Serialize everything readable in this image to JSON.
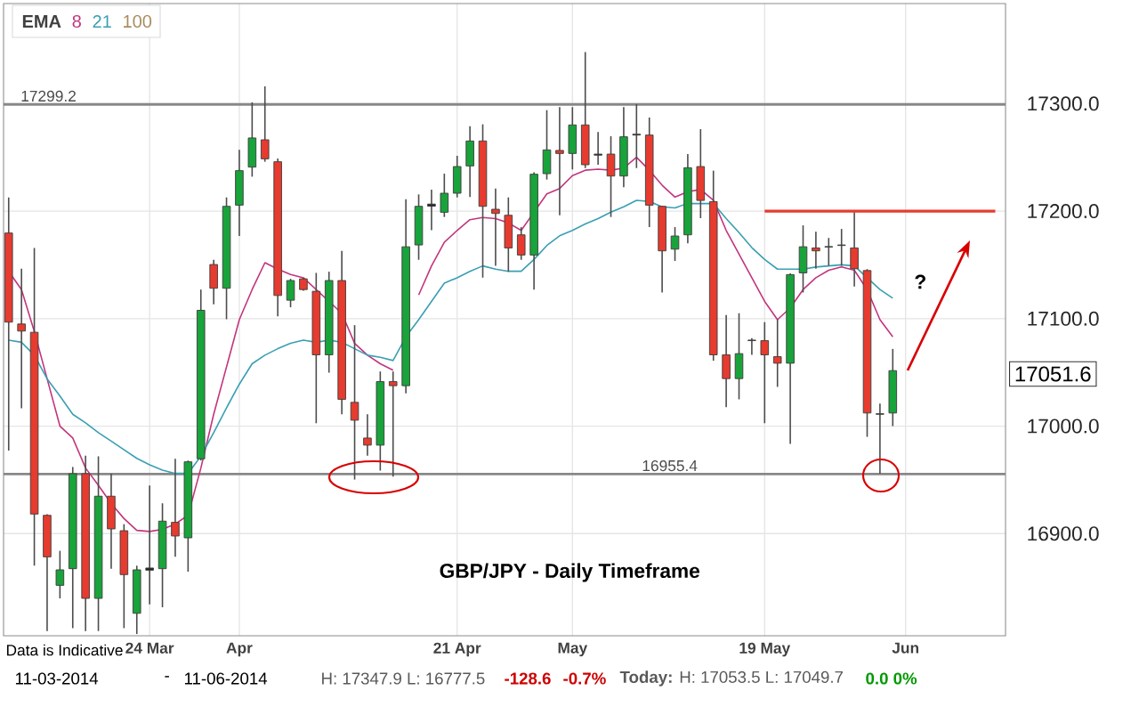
{
  "chart_data": {
    "type": "candlestick",
    "title": "GBP/JPY - Daily Timeframe",
    "legend_title": "EMA",
    "legend": "top left",
    "grid": true,
    "categories": [
      null,
      null,
      null,
      null,
      null,
      null,
      null,
      null,
      null,
      null,
      null,
      "24 Mar",
      null,
      null,
      null,
      null,
      null,
      null,
      "Apr",
      null,
      null,
      null,
      null,
      null,
      null,
      null,
      null,
      null,
      null,
      null,
      null,
      null,
      null,
      null,
      null,
      "21 Apr",
      null,
      null,
      null,
      null,
      null,
      null,
      null,
      null,
      "May",
      null,
      null,
      null,
      null,
      null,
      null,
      null,
      null,
      null,
      null,
      null,
      null,
      null,
      null,
      "19 May",
      null,
      null,
      null,
      null,
      null,
      null,
      null,
      null,
      null,
      null,
      "Jun",
      null,
      null,
      null,
      null,
      null,
      null,
      null
    ],
    "ohlc": [
      [
        17179.6,
        17212.7,
        16977.3,
        17096.7
      ],
      [
        17095.0,
        17146.4,
        17016.6,
        17088.4
      ],
      [
        17087.3,
        17165.7,
        16870.2,
        16918.2
      ],
      [
        16917.0,
        16918.0,
        16809.4,
        16878.4
      ],
      [
        16851.9,
        16884.0,
        16839.8,
        16866.3
      ],
      [
        16867.4,
        16962.0,
        16812.1,
        16955.8
      ],
      [
        16955.8,
        16972.4,
        16809.4,
        16839.8
      ],
      [
        16839.8,
        16971.9,
        16809.4,
        16934.8
      ],
      [
        16934.8,
        16955.8,
        16867.4,
        16904.4
      ],
      [
        16902.7,
        16908.8,
        16812.1,
        16861.9
      ],
      [
        16825.9,
        16870.2,
        16806.6,
        16866.3
      ],
      [
        16866.0,
        16944.7,
        16834.2,
        16868.0
      ],
      [
        16867.4,
        16928.2,
        16831.5,
        16911.6
      ],
      [
        16910.5,
        16969.6,
        16878.4,
        16897.8
      ],
      [
        16896.1,
        16968.0,
        16864.6,
        16966.8
      ],
      [
        16969.6,
        17127.0,
        16968.0,
        17107.7
      ],
      [
        17150.3,
        17154.7,
        17113.3,
        17128.2
      ],
      [
        17128.2,
        17212.7,
        17099.4,
        17204.4
      ],
      [
        17205.5,
        17256.9,
        17176.8,
        17237.6
      ],
      [
        17240.9,
        17301.1,
        17232.0,
        17268.0
      ],
      [
        17266.3,
        17316.0,
        17245.9,
        17248.6
      ],
      [
        17245.9,
        17249.0,
        17102.2,
        17121.5
      ],
      [
        17117.1,
        17137.0,
        17110.5,
        17135.4
      ],
      [
        17137.0,
        17138.0,
        17126.0,
        17127.0
      ],
      [
        17125.4,
        17142.5,
        17002.7,
        17066.3
      ],
      [
        17066.3,
        17143.6,
        17049.7,
        17135.4
      ],
      [
        17135.4,
        17163.0,
        17011.0,
        17024.9
      ],
      [
        17022.1,
        17093.9,
        16950.3,
        17005.5
      ],
      [
        16988.9,
        17011.0,
        16972.4,
        16982.3
      ],
      [
        16982.3,
        17050.8,
        16958.6,
        17041.4
      ],
      [
        17041.4,
        17050.8,
        16953.0,
        17037.6
      ],
      [
        17037.6,
        17211.0,
        17030.4,
        17166.8
      ],
      [
        17168.5,
        17215.5,
        17154.7,
        17204.4
      ],
      [
        17204.5,
        17219.9,
        17182.3,
        17206.5
      ],
      [
        17198.9,
        17234.8,
        17194.5,
        17216.6
      ],
      [
        17216.6,
        17251.4,
        17212.7,
        17241.4
      ],
      [
        17242.0,
        17279.0,
        17213.0,
        17265.2
      ],
      [
        17265.2,
        17280.7,
        17138.1,
        17204.4
      ],
      [
        17201.7,
        17221.0,
        17149.2,
        17197.8
      ],
      [
        17196.1,
        17212.7,
        17143.6,
        17165.7
      ],
      [
        17177.9,
        17185.1,
        17154.7,
        17159.1
      ],
      [
        17159.1,
        17236.0,
        17127.0,
        17234.3
      ],
      [
        17234.8,
        17293.9,
        17229.3,
        17256.9
      ],
      [
        17256.4,
        17296.7,
        17196.1,
        17253.6
      ],
      [
        17253.6,
        17296.7,
        17238.7,
        17280.1
      ],
      [
        17280.1,
        17347.9,
        17240.0,
        17243.1
      ],
      [
        17252.0,
        17273.5,
        17243.1,
        17253.0
      ],
      [
        17253.0,
        17269.6,
        17194.5,
        17232.6
      ],
      [
        17232.6,
        17296.7,
        17222.1,
        17269.1
      ],
      [
        17270.7,
        17299.4,
        17240.0,
        17271.5
      ],
      [
        17270.7,
        17287.0,
        17185.1,
        17205.5
      ],
      [
        17204.4,
        17205.0,
        17124.3,
        17163.0
      ],
      [
        17164.6,
        17185.1,
        17153.6,
        17176.8
      ],
      [
        17177.9,
        17253.0,
        17170.0,
        17240.3
      ],
      [
        17241.4,
        17276.2,
        17193.4,
        17209.9
      ],
      [
        17208.8,
        17237.6,
        17060.8,
        17066.3
      ],
      [
        17066.3,
        17103.3,
        17017.7,
        17044.2
      ],
      [
        17044.2,
        17105.0,
        17024.9,
        17067.4
      ],
      [
        17079.5,
        17081.8,
        17066.3,
        17080.0
      ],
      [
        17079.5,
        17096.7,
        17002.7,
        17066.3
      ],
      [
        17064.6,
        17099.4,
        17036.5,
        17058.5
      ],
      [
        17058.5,
        17142.0,
        16983.4,
        17140.9
      ],
      [
        17142.5,
        17186.7,
        17124.3,
        17166.8
      ],
      [
        17165.7,
        17180.7,
        17146.4,
        17163.0
      ],
      [
        17166.5,
        17175.0,
        17149.2,
        17167.0
      ],
      [
        17168.0,
        17183.4,
        17149.2,
        17168.5
      ],
      [
        17165.7,
        17198.9,
        17129.8,
        17146.4
      ],
      [
        17144.7,
        17146.0,
        16990.0,
        17012.2
      ],
      [
        17011.0,
        17021.0,
        16955.8,
        17011.5
      ],
      [
        17012.2,
        17071.8,
        17000.0,
        17051.6
      ],
      null,
      null,
      null,
      null,
      null,
      null,
      null,
      null
    ],
    "colors": [
      "#e63b2e",
      "#e63b2e",
      "#e63b2e",
      "#e63b2e",
      "#19a33b",
      "#19a33b",
      "#e63b2e",
      "#19a33b",
      "#e63b2e",
      "#e63b2e",
      "#19a33b",
      "#222222",
      "#19a33b",
      "#e63b2e",
      "#19a33b",
      "#19a33b",
      "#e63b2e",
      "#19a33b",
      "#19a33b",
      "#19a33b",
      "#e63b2e",
      "#e63b2e",
      "#19a33b",
      "#e63b2e",
      "#e63b2e",
      "#19a33b",
      "#e63b2e",
      "#e63b2e",
      "#e63b2e",
      "#19a33b",
      "#e63b2e",
      "#19a33b",
      "#19a33b",
      "#222222",
      "#19a33b",
      "#19a33b",
      "#19a33b",
      "#e63b2e",
      "#e63b2e",
      "#e63b2e",
      "#e63b2e",
      "#19a33b",
      "#19a33b",
      "#e63b2e",
      "#19a33b",
      "#e63b2e",
      "#222222",
      "#e63b2e",
      "#19a33b",
      "#222222",
      "#e63b2e",
      "#e63b2e",
      "#19a33b",
      "#19a33b",
      "#e63b2e",
      "#e63b2e",
      "#e63b2e",
      "#19a33b",
      "#222222",
      "#e63b2e",
      "#e63b2e",
      "#19a33b",
      "#19a33b",
      "#e63b2e",
      "#222222",
      "#222222",
      "#e63b2e",
      "#e63b2e",
      "#222222",
      "#19a33b",
      null,
      null,
      null,
      null,
      null,
      null,
      null,
      null
    ],
    "series": [
      {
        "type": "line",
        "name": "8",
        "color": "#c2357e",
        "values": [
          17144,
          17127,
          17088,
          17044,
          17000,
          16989,
          16961,
          16945,
          16928,
          16914,
          16903,
          16902,
          16904,
          16909,
          16917,
          16961,
          17011,
          17055,
          17099,
          17127,
          17152,
          17146,
          17141,
          17138,
          17127,
          17116,
          17105,
          17077,
          17066,
          17058,
          17052,
          null,
          17122,
          17149,
          17171,
          17182,
          17192,
          17194,
          17193,
          17189,
          17182,
          17199,
          17216,
          17221,
          17233,
          17238,
          17239,
          17238,
          17240,
          17250,
          17238,
          17224,
          17213,
          17218,
          17220,
          17210,
          17182,
          17160,
          17138,
          17116,
          17099,
          17110,
          17127,
          17138,
          17145,
          17148,
          17145,
          17127,
          17099,
          17083,
          null,
          null,
          null,
          null,
          null,
          null,
          null,
          null
        ]
      },
      {
        "type": "line",
        "name": "21",
        "color": "#3a9fb3",
        "values": [
          17080,
          17078,
          17066,
          17044,
          17028,
          17011,
          17003,
          16994,
          16986,
          16978,
          16970,
          16964,
          16959,
          16956,
          16956,
          16972,
          16994,
          17017,
          17039,
          17058,
          17066,
          17072,
          17077,
          17080,
          17078,
          17080,
          17078,
          17072,
          17066,
          17064,
          17061,
          17083,
          17099,
          17116,
          17133,
          17138,
          17144,
          17149,
          17146,
          17144,
          17144,
          17155,
          17168,
          17177,
          17182,
          17188,
          17193,
          17199,
          17204,
          17210,
          17209,
          17204,
          17203,
          17207,
          17207,
          17207,
          17193,
          17180,
          17166,
          17155,
          17146,
          17146,
          17146,
          17148,
          17149,
          17150,
          17149,
          17138,
          17127,
          17119,
          null,
          null,
          null,
          null,
          null,
          null,
          null,
          null
        ]
      },
      {
        "type": "line",
        "name": "100",
        "color": "#a88c5c",
        "values": [
          null,
          null,
          null,
          null,
          null,
          null,
          null,
          null,
          null,
          null,
          null,
          null,
          null,
          null,
          null,
          null,
          null,
          null,
          null,
          null,
          null,
          null,
          null,
          null,
          null,
          null,
          null,
          null,
          null,
          null,
          null,
          null,
          null,
          null,
          null,
          null,
          null,
          null,
          null,
          null,
          null,
          null,
          null,
          null,
          null,
          null,
          null,
          null,
          null,
          null,
          null,
          null,
          null,
          null,
          null,
          null,
          null,
          null,
          null,
          null,
          null,
          null,
          null,
          null,
          null,
          null,
          null,
          null,
          null,
          null,
          null,
          null,
          null,
          null,
          null,
          null,
          null,
          null
        ]
      },
      {
        "type": "line",
        "color": "#e63b2e",
        "values": [
          null,
          null,
          null,
          null,
          null,
          null,
          null,
          null,
          null,
          null,
          null,
          null,
          null,
          null,
          null,
          null,
          null,
          null,
          null,
          null,
          null,
          null,
          null,
          null,
          null,
          null,
          null,
          null,
          null,
          null,
          null,
          null,
          null,
          null,
          null,
          null,
          null,
          null,
          null,
          null,
          null,
          null,
          null,
          null,
          null,
          null,
          null,
          null,
          null,
          null,
          null,
          null,
          null,
          null,
          null,
          null,
          null,
          null,
          null,
          17200,
          17200,
          17200,
          17200,
          17200,
          17200,
          17200,
          17200,
          17200,
          17200,
          17200,
          17200,
          17200,
          17200,
          17200,
          17200,
          17200,
          17200,
          17200
        ]
      }
    ],
    "ylim": [
      16805,
      17393
    ],
    "yticks": [
      {
        "value": 16900,
        "label": "16900.0"
      },
      {
        "value": 17000,
        "label": "17000.0"
      },
      {
        "value": 17100,
        "label": "17100.0"
      },
      {
        "value": 17200,
        "label": "17200.0"
      },
      {
        "value": 17300,
        "label": "17300.0"
      }
    ],
    "ref_lines": [
      {
        "axis": "y",
        "value": 17299.2,
        "label": "17299.2",
        "color": "#888888"
      },
      {
        "axis": "y",
        "value": 16955.4,
        "label": "16955.4",
        "color": "#888888"
      }
    ],
    "annotations": [
      "Data is Indicative",
      "?",
      "17051.6",
      "11-03-2014",
      "-",
      "11-06-2014",
      "H: 17347.9  L: 16777.5",
      "-128.6",
      "-0.7%",
      "**Today:** H: 17053.5  L: 17049.7",
      "0.0  0%"
    ]
  }
}
